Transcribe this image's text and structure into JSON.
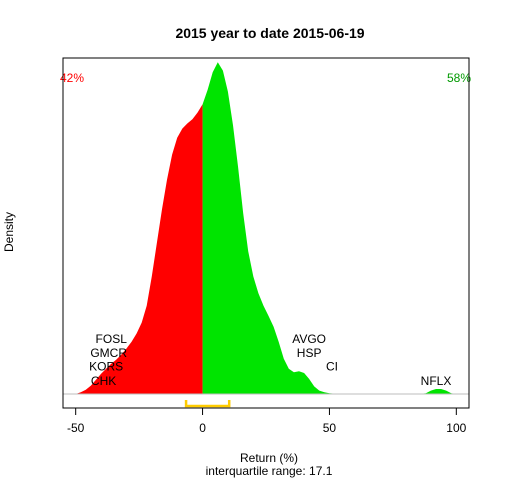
{
  "chart_data": {
    "type": "area",
    "title": "2015  year to date 2015-06-19",
    "xlabel": "Return (%)",
    "ylabel": "Density",
    "subtitle": "interquartile range: 17.1",
    "xlim": [
      -55,
      105
    ],
    "ylim": [
      0,
      0.04
    ],
    "x_ticks": [
      "-50",
      "0",
      "50",
      "100"
    ],
    "x_tick_values": [
      -50,
      0,
      50,
      100
    ],
    "grid": false,
    "colors": {
      "negative": "#ff0000",
      "positive": "#00e400",
      "iqr": "#ffcc00",
      "baseline": "#bebebe"
    },
    "pct_negative": "42%",
    "pct_positive": "58%",
    "iqr_bracket": [
      -6.5,
      10.5
    ],
    "density": {
      "x": [
        -50,
        -48,
        -46,
        -44,
        -42,
        -40,
        -38,
        -36,
        -34,
        -32,
        -30,
        -28,
        -26,
        -24,
        -22,
        -20,
        -18,
        -16,
        -14,
        -12,
        -10,
        -8,
        -6,
        -4,
        -2,
        0,
        2,
        4,
        6,
        8,
        10,
        12,
        14,
        16,
        18,
        20,
        22,
        24,
        26,
        28,
        30,
        32,
        34,
        36,
        38,
        40,
        42,
        44,
        46,
        48,
        50,
        52,
        54,
        56,
        58,
        60,
        65,
        70,
        75,
        80,
        85,
        88,
        90,
        92,
        94,
        96,
        98,
        100
      ],
      "y": [
        0.0,
        0.0002,
        0.0005,
        0.001,
        0.0017,
        0.0024,
        0.003,
        0.0036,
        0.0041,
        0.0047,
        0.0054,
        0.0062,
        0.0072,
        0.0085,
        0.0105,
        0.014,
        0.018,
        0.022,
        0.0255,
        0.0285,
        0.0305,
        0.0316,
        0.0322,
        0.0327,
        0.0335,
        0.0345,
        0.0362,
        0.0383,
        0.0395,
        0.0385,
        0.036,
        0.032,
        0.027,
        0.0215,
        0.017,
        0.014,
        0.012,
        0.0105,
        0.0093,
        0.008,
        0.0062,
        0.0042,
        0.003,
        0.0026,
        0.0027,
        0.0025,
        0.0018,
        0.0009,
        0.0004,
        0.0002,
        0.0001,
        5e-05,
        0.0,
        0.0,
        0.0,
        0.0,
        0.0,
        0.0,
        0.0,
        0.0,
        0.0,
        0.0001,
        0.0004,
        0.0006,
        0.0006,
        0.0004,
        0.0001,
        0.0
      ]
    },
    "annotations": [
      {
        "text": "FOSL",
        "x": -36,
        "y": 0.0061
      },
      {
        "text": "GMCR",
        "x": -37,
        "y": 0.0044
      },
      {
        "text": "KORS",
        "x": -38,
        "y": 0.0028
      },
      {
        "text": "CHK",
        "x": -39,
        "y": 0.0011
      },
      {
        "text": "AVGO",
        "x": 42,
        "y": 0.0061
      },
      {
        "text": "HSP",
        "x": 42,
        "y": 0.0044
      },
      {
        "text": "CI",
        "x": 51,
        "y": 0.0028
      },
      {
        "text": "NFLX",
        "x": 92,
        "y": 0.0011
      }
    ]
  }
}
